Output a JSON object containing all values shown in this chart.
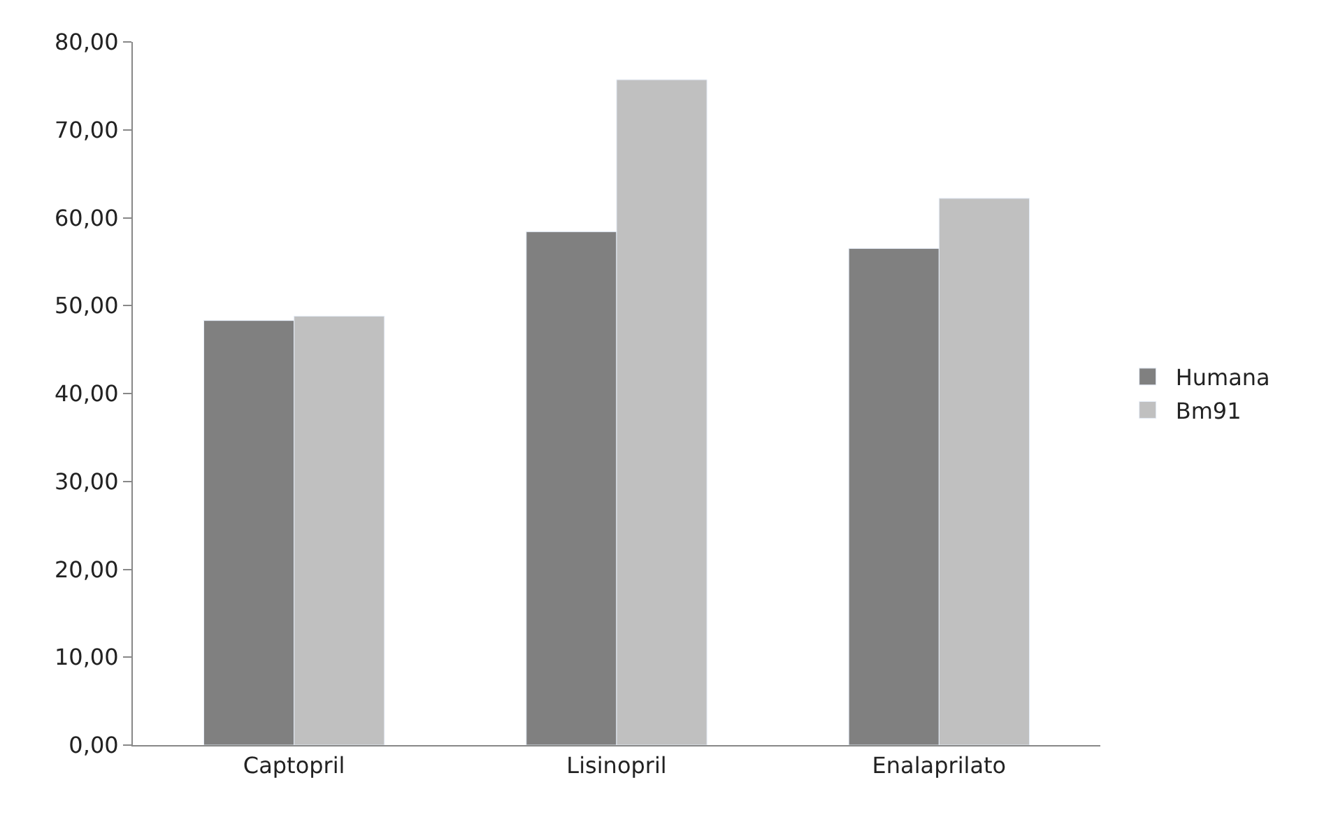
{
  "chart_data": {
    "type": "bar",
    "categories": [
      "Captopril",
      "Lisinopril",
      "Enalaprilato"
    ],
    "series": [
      {
        "name": "Humana",
        "color": "#808080",
        "values": [
          48.3,
          58.4,
          56.5
        ]
      },
      {
        "name": "Bm91",
        "color": "#c0c0c0",
        "values": [
          48.8,
          75.7,
          62.2
        ]
      }
    ],
    "ylim": [
      0,
      80
    ],
    "yticks": [
      {
        "value": 0,
        "label": "0,00"
      },
      {
        "value": 10,
        "label": "10,00"
      },
      {
        "value": 20,
        "label": "20,00"
      },
      {
        "value": 30,
        "label": "30,00"
      },
      {
        "value": 40,
        "label": "40,00"
      },
      {
        "value": 50,
        "label": "50,00"
      },
      {
        "value": 60,
        "label": "60,00"
      },
      {
        "value": 70,
        "label": "70,00"
      },
      {
        "value": 80,
        "label": "80,00"
      }
    ],
    "grid": false,
    "legend": "right"
  }
}
